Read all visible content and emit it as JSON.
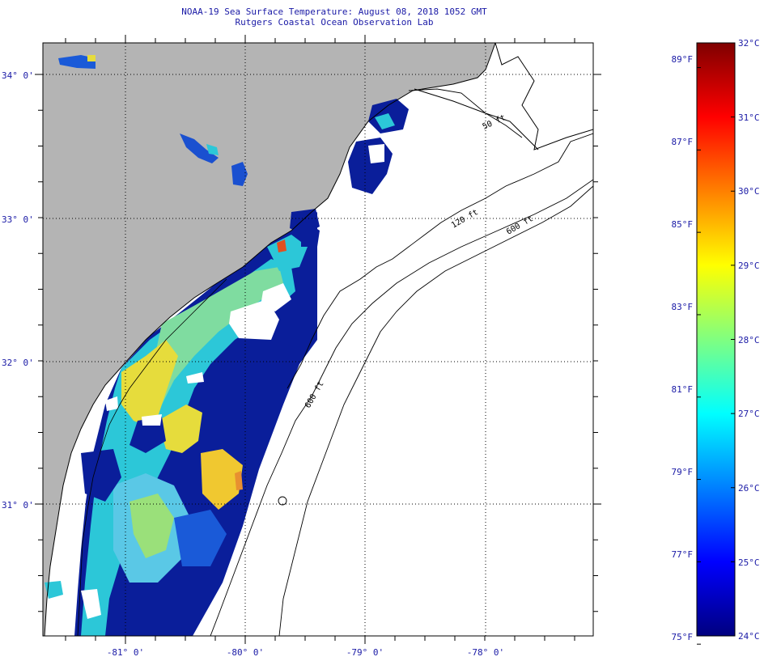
{
  "title": {
    "line1": "NOAA-19 Sea Surface Temperature:  August 08, 2018 1052 GMT",
    "line2": "Rutgers Coastal Ocean Observation Lab"
  },
  "map": {
    "lat_labels": [
      "34° 0'",
      "33° 0'",
      "32° 0'",
      "31° 0'"
    ],
    "lon_labels": [
      "-81° 0'",
      "-80° 0'",
      "-79° 0'",
      "-78° 0'"
    ],
    "isobath_labels": [
      "50 ft",
      "120 ft",
      "600 ft",
      "600 ft"
    ],
    "colors": {
      "land": "#b4b4b4",
      "ocean": "#ffffff",
      "coast": "#000000"
    }
  },
  "colorbar": {
    "min_c": 24,
    "max_c": 32,
    "celsius_labels": [
      "32°C",
      "31°C",
      "30°C",
      "29°C",
      "28°C",
      "27°C",
      "26°C",
      "25°C",
      "24°C"
    ],
    "fahrenheit_labels": [
      "89°F",
      "87°F",
      "85°F",
      "83°F",
      "81°F",
      "79°F",
      "77°F",
      "75°F"
    ],
    "fahrenheit_values": [
      89,
      87,
      85,
      83,
      81,
      79,
      77,
      75
    ],
    "stops": [
      "#00007f",
      "#0000ff",
      "#0080ff",
      "#00ffff",
      "#80ff80",
      "#ffff00",
      "#ff8000",
      "#ff0000",
      "#7f0000"
    ]
  }
}
